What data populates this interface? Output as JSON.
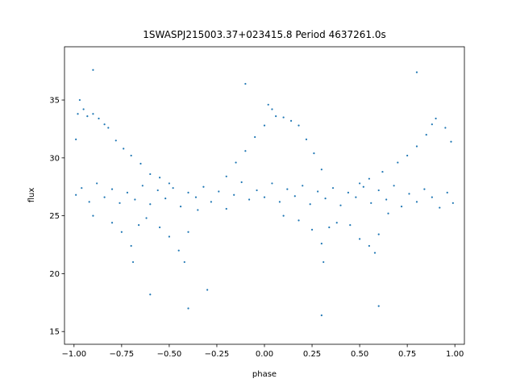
{
  "chart_data": {
    "type": "scatter",
    "title": "1SWASPJ215003.37+023415.8 Period 4637261.0s",
    "xlabel": "phase",
    "ylabel": "flux",
    "xlim": [
      -1.05,
      1.05
    ],
    "ylim": [
      13.9,
      39.6
    ],
    "xticks": [
      {
        "value": -1.0,
        "label": "−1.00"
      },
      {
        "value": -0.75,
        "label": "−0.75"
      },
      {
        "value": -0.5,
        "label": "−0.50"
      },
      {
        "value": -0.25,
        "label": "−0.25"
      },
      {
        "value": 0.0,
        "label": "0.00"
      },
      {
        "value": 0.25,
        "label": "0.25"
      },
      {
        "value": 0.5,
        "label": "0.50"
      },
      {
        "value": 0.75,
        "label": "0.75"
      },
      {
        "value": 1.0,
        "label": "1.00"
      }
    ],
    "yticks": [
      {
        "value": 15,
        "label": "15"
      },
      {
        "value": 20,
        "label": "20"
      },
      {
        "value": 25,
        "label": "25"
      },
      {
        "value": 30,
        "label": "30"
      },
      {
        "value": 35,
        "label": "35"
      }
    ],
    "grid": false,
    "legend": "none",
    "marker_color": "#1f77b4",
    "series": [
      {
        "points": [
          [
            -0.99,
            31.6
          ],
          [
            -0.98,
            33.8
          ],
          [
            -0.97,
            35.0
          ],
          [
            -0.95,
            34.2
          ],
          [
            -0.93,
            33.6
          ],
          [
            -0.9,
            33.8
          ],
          [
            -0.87,
            33.4
          ],
          [
            -0.84,
            32.9
          ],
          [
            -0.82,
            32.6
          ],
          [
            -0.78,
            31.5
          ],
          [
            -0.74,
            30.8
          ],
          [
            -0.7,
            30.2
          ],
          [
            -0.65,
            29.5
          ],
          [
            -0.6,
            28.6
          ],
          [
            -0.55,
            28.3
          ],
          [
            -0.5,
            27.8
          ],
          [
            -0.99,
            26.8
          ],
          [
            -0.96,
            27.4
          ],
          [
            -0.92,
            26.2
          ],
          [
            -0.88,
            27.8
          ],
          [
            -0.84,
            26.6
          ],
          [
            -0.8,
            27.3
          ],
          [
            -0.76,
            26.1
          ],
          [
            -0.72,
            27.0
          ],
          [
            -0.68,
            26.4
          ],
          [
            -0.64,
            27.6
          ],
          [
            -0.6,
            26.0
          ],
          [
            -0.56,
            27.2
          ],
          [
            -0.52,
            26.5
          ],
          [
            -0.48,
            27.4
          ],
          [
            -0.44,
            25.8
          ],
          [
            -0.4,
            27.0
          ],
          [
            -0.36,
            26.6
          ],
          [
            -0.32,
            27.5
          ],
          [
            -0.28,
            26.2
          ],
          [
            -0.24,
            27.1
          ],
          [
            -0.2,
            25.6
          ],
          [
            -0.16,
            26.8
          ],
          [
            -0.12,
            27.9
          ],
          [
            -0.08,
            26.4
          ],
          [
            -0.04,
            27.2
          ],
          [
            0.0,
            26.6
          ],
          [
            0.04,
            27.8
          ],
          [
            0.08,
            26.2
          ],
          [
            0.12,
            27.3
          ],
          [
            0.16,
            26.7
          ],
          [
            0.2,
            27.6
          ],
          [
            0.24,
            26.0
          ],
          [
            0.28,
            27.1
          ],
          [
            0.32,
            26.5
          ],
          [
            0.36,
            27.4
          ],
          [
            0.4,
            25.9
          ],
          [
            0.44,
            27.0
          ],
          [
            0.48,
            26.6
          ],
          [
            0.52,
            27.5
          ],
          [
            0.56,
            26.1
          ],
          [
            0.6,
            27.2
          ],
          [
            0.64,
            26.4
          ],
          [
            0.68,
            27.6
          ],
          [
            0.72,
            25.8
          ],
          [
            0.76,
            26.9
          ],
          [
            0.8,
            26.2
          ],
          [
            0.84,
            27.3
          ],
          [
            0.88,
            26.6
          ],
          [
            0.92,
            25.7
          ],
          [
            0.96,
            27.0
          ],
          [
            0.99,
            26.1
          ],
          [
            -0.9,
            25.0
          ],
          [
            -0.8,
            24.4
          ],
          [
            -0.75,
            23.6
          ],
          [
            -0.7,
            22.4
          ],
          [
            -0.69,
            21.0
          ],
          [
            -0.66,
            24.2
          ],
          [
            -0.62,
            24.8
          ],
          [
            -0.55,
            24.0
          ],
          [
            -0.5,
            23.2
          ],
          [
            -0.45,
            22.0
          ],
          [
            -0.42,
            21.0
          ],
          [
            -0.4,
            23.6
          ],
          [
            -0.35,
            25.5
          ],
          [
            -0.2,
            28.4
          ],
          [
            -0.15,
            29.6
          ],
          [
            -0.1,
            30.6
          ],
          [
            -0.05,
            31.8
          ],
          [
            0.0,
            32.8
          ],
          [
            0.02,
            34.6
          ],
          [
            0.04,
            34.2
          ],
          [
            0.06,
            33.6
          ],
          [
            0.1,
            33.5
          ],
          [
            0.14,
            33.2
          ],
          [
            0.18,
            32.8
          ],
          [
            0.22,
            31.6
          ],
          [
            0.26,
            30.4
          ],
          [
            0.3,
            29.0
          ],
          [
            0.1,
            25.0
          ],
          [
            0.18,
            24.6
          ],
          [
            0.25,
            23.8
          ],
          [
            0.3,
            22.6
          ],
          [
            0.31,
            21.0
          ],
          [
            0.34,
            24.0
          ],
          [
            0.38,
            24.4
          ],
          [
            0.45,
            24.2
          ],
          [
            0.5,
            23.0
          ],
          [
            0.55,
            22.4
          ],
          [
            0.58,
            21.8
          ],
          [
            0.6,
            23.4
          ],
          [
            0.65,
            25.2
          ],
          [
            0.5,
            27.8
          ],
          [
            0.55,
            28.2
          ],
          [
            0.62,
            28.8
          ],
          [
            0.7,
            29.6
          ],
          [
            0.75,
            30.2
          ],
          [
            0.8,
            31.0
          ],
          [
            0.85,
            32.0
          ],
          [
            0.88,
            32.9
          ],
          [
            0.9,
            33.4
          ],
          [
            0.95,
            32.6
          ],
          [
            0.98,
            31.4
          ],
          [
            -0.6,
            18.2
          ],
          [
            -0.4,
            17.0
          ],
          [
            -0.1,
            36.4
          ],
          [
            0.3,
            16.4
          ],
          [
            0.6,
            17.2
          ],
          [
            0.8,
            37.4
          ],
          [
            -0.9,
            37.6
          ],
          [
            -0.3,
            18.6
          ]
        ]
      }
    ]
  }
}
